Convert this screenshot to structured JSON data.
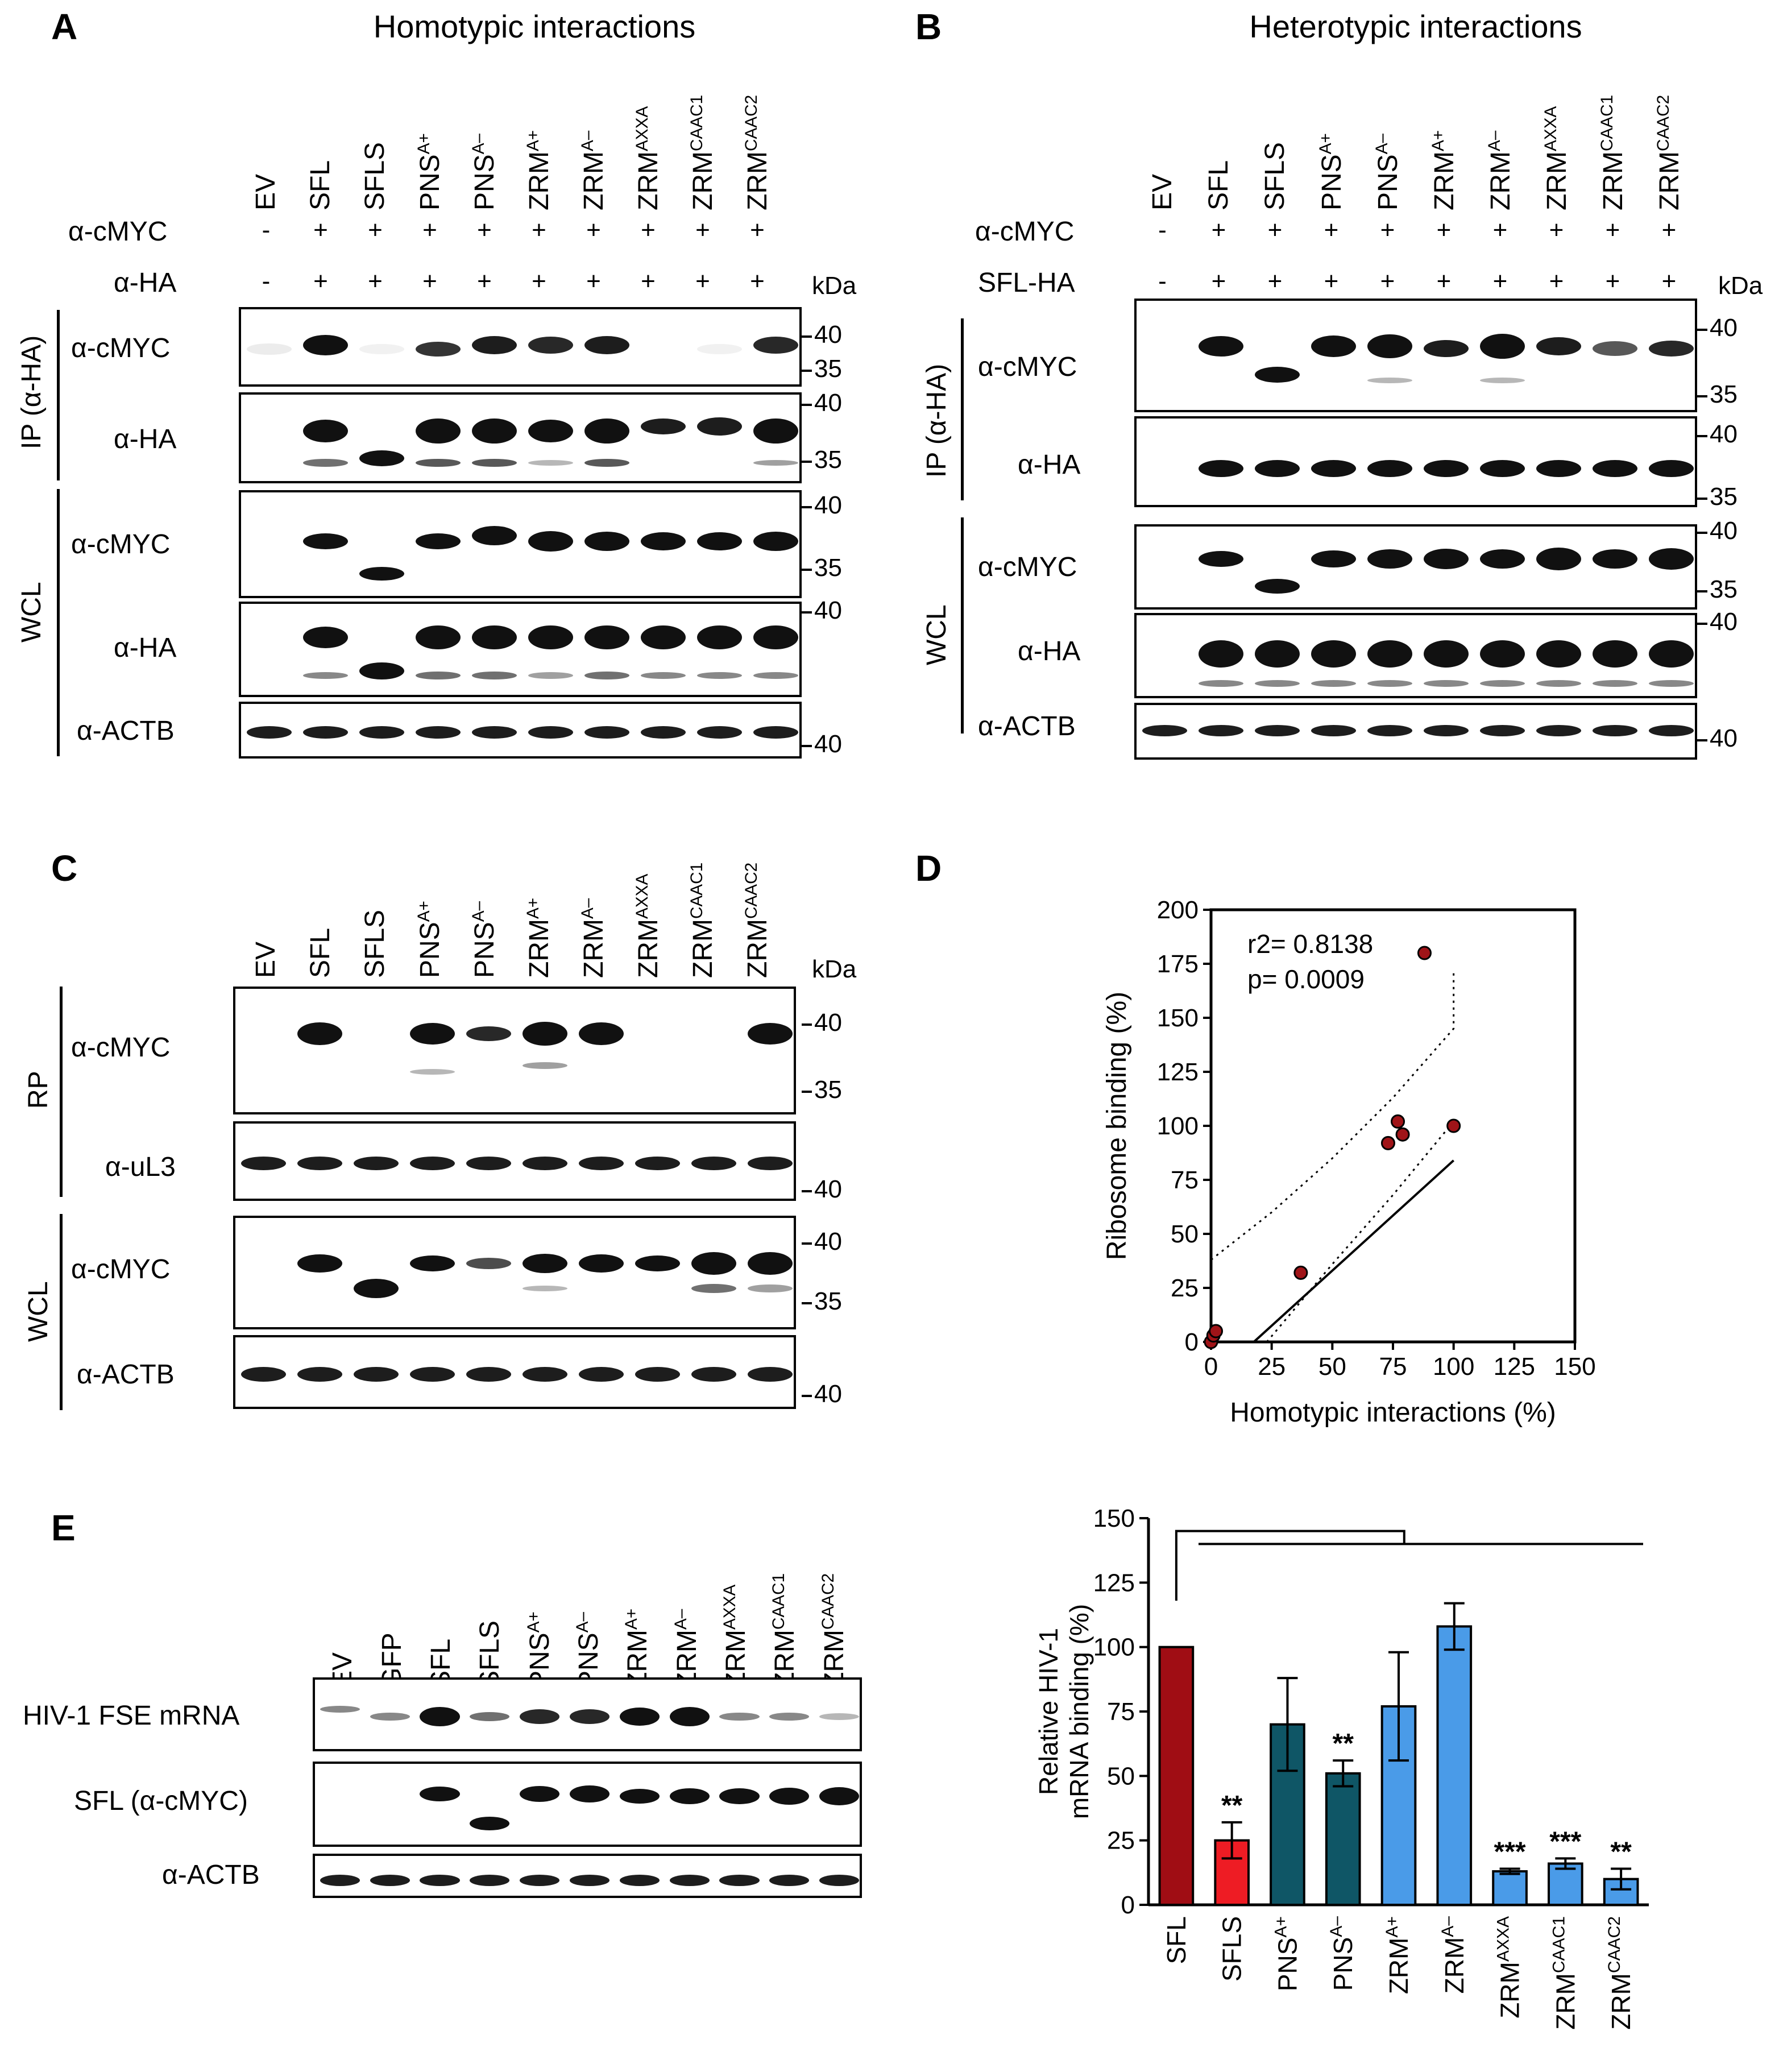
{
  "panels": {
    "A": "A",
    "B": "B",
    "C": "C",
    "D": "D",
    "E": "E"
  },
  "titles": {
    "A": "Homotypic interactions",
    "B": "Heterotypic interactions"
  },
  "lanes": [
    {
      "base": "EV",
      "sup": ""
    },
    {
      "base": "SFL",
      "sup": ""
    },
    {
      "base": "SFLS",
      "sup": ""
    },
    {
      "base": "PNS",
      "sup": "A+"
    },
    {
      "base": "PNS",
      "sup": "A–"
    },
    {
      "base": "ZRM",
      "sup": "A+"
    },
    {
      "base": "ZRM",
      "sup": "A–"
    },
    {
      "base": "ZRM",
      "sup": "AXXA"
    },
    {
      "base": "ZRM",
      "sup": "CAAC1"
    },
    {
      "base": "ZRM",
      "sup": "CAAC2"
    }
  ],
  "lanesE": [
    {
      "base": "EV",
      "sup": ""
    },
    {
      "base": "GFP",
      "sup": ""
    },
    {
      "base": "SFL",
      "sup": ""
    },
    {
      "base": "SFLS",
      "sup": ""
    },
    {
      "base": "PNS",
      "sup": "A+"
    },
    {
      "base": "PNS",
      "sup": "A–"
    },
    {
      "base": "ZRM",
      "sup": "A+"
    },
    {
      "base": "ZRM",
      "sup": "A–"
    },
    {
      "base": "ZRM",
      "sup": "AXXA"
    },
    {
      "base": "ZRM",
      "sup": "CAAC1"
    },
    {
      "base": "ZRM",
      "sup": "CAAC2"
    }
  ],
  "signs": [
    "-",
    "+",
    "+",
    "+",
    "+",
    "+",
    "+",
    "+",
    "+",
    "+"
  ],
  "labels": {
    "cmyc": "α-cMYC",
    "ha": "α-HA",
    "actb": "α-ACTB",
    "ul3": "α-uL3",
    "sflha": "SFL-HA",
    "kda": "kDa",
    "ip": "IP (α-HA)",
    "wcl": "WCL",
    "rp": "RP",
    "fse": "HIV-1 FSE mRNA",
    "sfl_cmyc": "SFL (α-cMYC)"
  },
  "mw": {
    "m40": "40",
    "m35": "35"
  },
  "chart_data": [
    {
      "type": "scatter",
      "panel": "D",
      "xlabel": "Homotypic interactions (%)",
      "ylabel": "Ribosome binding (%)",
      "xlim": [
        0,
        150
      ],
      "ylim": [
        0,
        200
      ],
      "xticks": [
        0,
        25,
        50,
        75,
        100,
        125,
        150
      ],
      "yticks": [
        0,
        25,
        50,
        75,
        100,
        125,
        150,
        175,
        200
      ],
      "points": [
        [
          0,
          0
        ],
        [
          1,
          3
        ],
        [
          2,
          5
        ],
        [
          37,
          32
        ],
        [
          73,
          92
        ],
        [
          77,
          102
        ],
        [
          79,
          96
        ],
        [
          88,
          180
        ],
        [
          100,
          100
        ]
      ],
      "fit": {
        "slope": 1.02,
        "intercept": -18
      },
      "band_upper": [
        [
          0,
          38
        ],
        [
          25,
          60
        ],
        [
          50,
          85
        ],
        [
          75,
          113
        ],
        [
          100,
          145
        ],
        [
          100,
          171
        ]
      ],
      "band_lower": [
        [
          23,
          0
        ],
        [
          50,
          36
        ],
        [
          75,
          68
        ],
        [
          100,
          102
        ]
      ],
      "annotation": [
        "r2= 0.8138",
        "p= 0.0009"
      ]
    },
    {
      "type": "bar",
      "panel": "E",
      "ylabel": "Relative HIV-1 mRNA binding (%)",
      "ylim": [
        0,
        150
      ],
      "yticks": [
        0,
        25,
        50,
        75,
        100,
        125,
        150
      ],
      "categories": [
        "SFL",
        "SFLS",
        "PNSA+",
        "PNSA–",
        "ZRMA+",
        "ZRMA–",
        "ZRMAXXA",
        "ZRMCAAC1",
        "ZRMCAAC2"
      ],
      "values": [
        100,
        25,
        70,
        51,
        77,
        108,
        13,
        16,
        10
      ],
      "errors": [
        0,
        7,
        18,
        5,
        21,
        9,
        1,
        2,
        4
      ],
      "colors": [
        "#a00d14",
        "#ee1c24",
        "#0f5666",
        "#0f5666",
        "#4a9be8",
        "#4a9be8",
        "#4a9be8",
        "#4a9be8",
        "#4a9be8"
      ],
      "significance": [
        "",
        "**",
        "",
        "**",
        "",
        "",
        "***",
        "***",
        "**"
      ]
    }
  ]
}
